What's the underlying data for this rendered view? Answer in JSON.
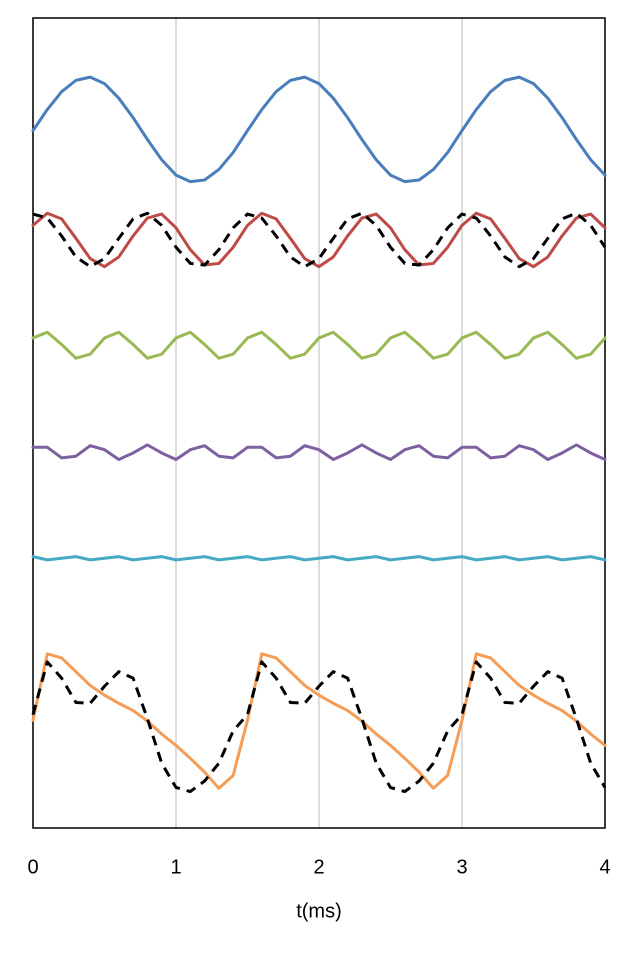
{
  "chart_data": {
    "type": "line",
    "x_label": "t(ms)",
    "xlim": [
      0,
      4
    ],
    "xticks": [
      0,
      1,
      2,
      3,
      4
    ],
    "ylim": [
      0,
      100
    ],
    "grid": true,
    "x": [
      0,
      0.1,
      0.2,
      0.3,
      0.4,
      0.5,
      0.6,
      0.7,
      0.8,
      0.9,
      1,
      1.1,
      1.2,
      1.3,
      1.4,
      1.5,
      1.6,
      1.7,
      1.8,
      1.9,
      2,
      2.1,
      2.2,
      2.3,
      2.4,
      2.5,
      2.6,
      2.7,
      2.8,
      2.9,
      3,
      3.1,
      3.2,
      3.3,
      3.4,
      3.5,
      3.6,
      3.7,
      3.8,
      3.9,
      4
    ],
    "series": [
      {
        "color": "#4a7ebb",
        "dashed": false,
        "values": [
          86.1,
          88.7,
          90.9,
          92.3,
          92.7,
          91.9,
          90.1,
          87.7,
          85.0,
          82.5,
          80.6,
          79.8,
          80.0,
          81.3,
          83.4,
          86.1,
          88.7,
          90.9,
          92.3,
          92.7,
          91.9,
          90.1,
          87.7,
          85.0,
          82.5,
          80.6,
          79.8,
          80.0,
          81.3,
          83.4,
          86.1,
          88.7,
          90.9,
          92.3,
          92.7,
          91.9,
          90.1,
          87.7,
          85.0,
          82.5,
          80.6
        ]
      },
      {
        "color": "#be4b48",
        "dashed": false,
        "values": [
          74.4,
          75.9,
          75.2,
          72.8,
          70.3,
          69.3,
          70.5,
          73.1,
          75.3,
          75.8,
          74.1,
          71.4,
          69.5,
          69.7,
          71.7,
          74.4,
          75.9,
          75.2,
          72.8,
          70.3,
          69.3,
          70.5,
          73.1,
          75.3,
          75.8,
          74.1,
          71.4,
          69.5,
          69.7,
          71.7,
          74.4,
          75.9,
          75.2,
          72.8,
          70.3,
          69.3,
          70.5,
          73.1,
          75.3,
          75.8,
          74.1
        ]
      },
      {
        "color": "#000000",
        "dashed": true,
        "values": [
          75.8,
          75.3,
          73.1,
          70.5,
          69.3,
          70.3,
          72.8,
          75.2,
          75.9,
          74.4,
          71.7,
          69.7,
          69.5,
          71.4,
          74.1,
          75.8,
          75.3,
          73.1,
          70.5,
          69.3,
          70.3,
          72.8,
          75.2,
          75.9,
          74.4,
          71.7,
          69.7,
          69.5,
          71.4,
          74.1,
          75.8,
          75.3,
          73.1,
          70.5,
          69.3,
          70.3,
          72.8,
          75.2,
          75.9,
          74.4,
          71.7
        ]
      },
      {
        "color": "#98b954",
        "dashed": false,
        "values": [
          60.5,
          61.2,
          59.7,
          58.0,
          58.5,
          60.5,
          61.2,
          59.7,
          58.0,
          58.5,
          60.5,
          61.2,
          59.7,
          58.0,
          58.5,
          60.5,
          61.2,
          59.7,
          58.0,
          58.5,
          60.5,
          61.2,
          59.7,
          58.0,
          58.5,
          60.5,
          61.2,
          59.7,
          58.0,
          58.5,
          60.5,
          61.2,
          59.7,
          58.0,
          58.5,
          60.5,
          61.2,
          59.7,
          58.0,
          58.5,
          60.5
        ]
      },
      {
        "color": "#7d60a0",
        "dashed": false,
        "values": [
          47.0,
          47.0,
          45.7,
          45.9,
          47.2,
          46.7,
          45.5,
          46.3,
          47.3,
          46.3,
          45.5,
          46.7,
          47.2,
          45.9,
          45.7,
          47.0,
          47.0,
          45.7,
          45.9,
          47.2,
          46.7,
          45.5,
          46.3,
          47.3,
          46.3,
          45.5,
          46.7,
          47.2,
          45.9,
          45.7,
          47.0,
          47.0,
          45.7,
          45.9,
          47.2,
          46.7,
          45.5,
          46.3,
          47.3,
          46.3,
          45.5
        ]
      },
      {
        "color": "#46aac5",
        "dashed": false,
        "values": [
          33.5,
          33.1,
          33.3,
          33.5,
          33.1,
          33.3,
          33.5,
          33.1,
          33.3,
          33.5,
          33.1,
          33.3,
          33.5,
          33.1,
          33.3,
          33.5,
          33.1,
          33.3,
          33.5,
          33.1,
          33.3,
          33.5,
          33.1,
          33.3,
          33.5,
          33.1,
          33.3,
          33.5,
          33.1,
          33.3,
          33.5,
          33.1,
          33.3,
          33.5,
          33.1,
          33.3,
          33.5,
          33.1,
          33.3,
          33.5,
          33.1
        ]
      },
      {
        "color": "#f59d56",
        "dashed": false,
        "values": [
          13.3,
          21.5,
          21.0,
          19.3,
          17.6,
          16.4,
          15.4,
          14.5,
          13.2,
          11.6,
          10.2,
          8.6,
          6.9,
          4.9,
          6.5,
          13.3,
          21.5,
          21.0,
          19.3,
          17.6,
          16.4,
          15.4,
          14.5,
          13.2,
          11.6,
          10.2,
          8.6,
          6.9,
          4.9,
          6.5,
          13.3,
          21.5,
          21.0,
          19.3,
          17.6,
          16.4,
          15.4,
          14.5,
          13.2,
          11.6,
          10.2
        ]
      },
      {
        "color": "#000000",
        "dashed": true,
        "values": [
          14.0,
          20.5,
          18.5,
          15.5,
          15.4,
          17.5,
          19.3,
          18.5,
          13.5,
          8.0,
          5.0,
          4.5,
          5.8,
          8.0,
          12.0,
          14.0,
          20.5,
          18.5,
          15.5,
          15.4,
          17.5,
          19.3,
          18.5,
          13.5,
          8.0,
          5.0,
          4.5,
          5.8,
          8.0,
          12.0,
          14.0,
          20.5,
          18.5,
          15.5,
          15.4,
          17.5,
          19.3,
          18.5,
          13.5,
          8.0,
          5.0
        ]
      }
    ]
  }
}
